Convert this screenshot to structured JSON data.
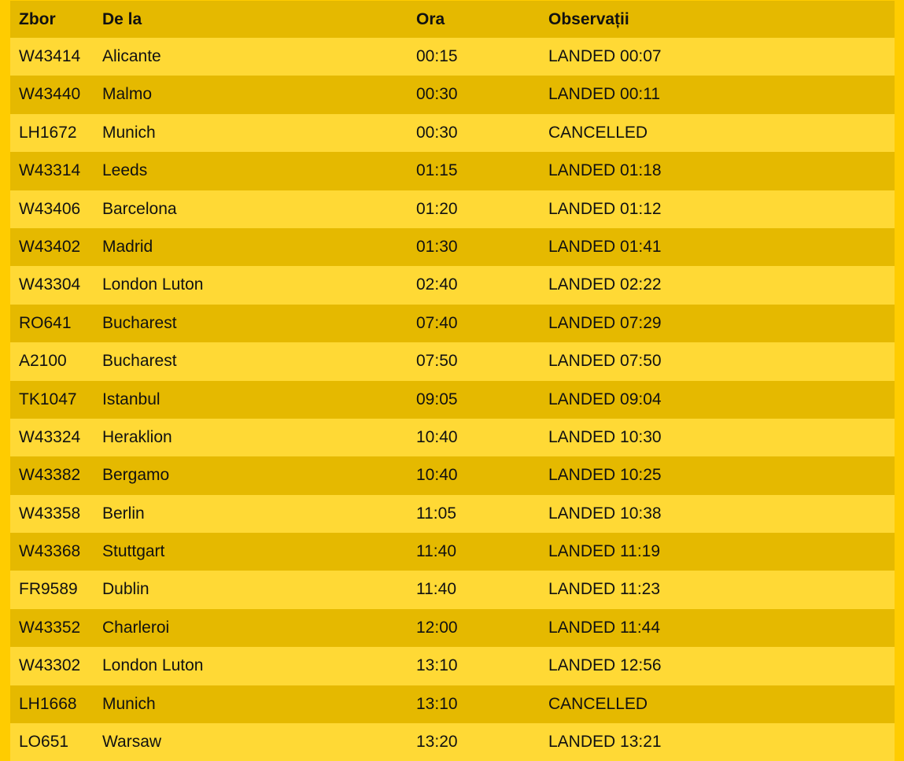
{
  "headers": {
    "flight": "Zbor",
    "from": "De la",
    "time": "Ora",
    "remarks": "Observații"
  },
  "rows": [
    {
      "flight": "W43414",
      "from": "Alicante",
      "time": "00:15",
      "remarks": "LANDED 00:07"
    },
    {
      "flight": "W43440",
      "from": "Malmo",
      "time": "00:30",
      "remarks": "LANDED 00:11"
    },
    {
      "flight": "LH1672",
      "from": "Munich",
      "time": "00:30",
      "remarks": "CANCELLED"
    },
    {
      "flight": "W43314",
      "from": "Leeds",
      "time": "01:15",
      "remarks": "LANDED 01:18"
    },
    {
      "flight": "W43406",
      "from": "Barcelona",
      "time": "01:20",
      "remarks": "LANDED 01:12"
    },
    {
      "flight": "W43402",
      "from": "Madrid",
      "time": "01:30",
      "remarks": "LANDED 01:41"
    },
    {
      "flight": "W43304",
      "from": "London Luton",
      "time": "02:40",
      "remarks": "LANDED 02:22"
    },
    {
      "flight": "RO641",
      "from": "Bucharest",
      "time": "07:40",
      "remarks": "LANDED 07:29"
    },
    {
      "flight": "A2100",
      "from": "Bucharest",
      "time": "07:50",
      "remarks": "LANDED 07:50"
    },
    {
      "flight": "TK1047",
      "from": "Istanbul",
      "time": "09:05",
      "remarks": "LANDED 09:04"
    },
    {
      "flight": "W43324",
      "from": "Heraklion",
      "time": "10:40",
      "remarks": "LANDED 10:30"
    },
    {
      "flight": "W43382",
      "from": "Bergamo",
      "time": "10:40",
      "remarks": "LANDED 10:25"
    },
    {
      "flight": "W43358",
      "from": "Berlin",
      "time": "11:05",
      "remarks": "LANDED 10:38"
    },
    {
      "flight": "W43368",
      "from": "Stuttgart",
      "time": "11:40",
      "remarks": "LANDED 11:19"
    },
    {
      "flight": "FR9589",
      "from": "Dublin",
      "time": "11:40",
      "remarks": "LANDED 11:23"
    },
    {
      "flight": "W43352",
      "from": "Charleroi",
      "time": "12:00",
      "remarks": "LANDED 11:44"
    },
    {
      "flight": "W43302",
      "from": "London Luton",
      "time": "13:10",
      "remarks": "LANDED 12:56"
    },
    {
      "flight": "LH1668",
      "from": "Munich",
      "time": "13:10",
      "remarks": "CANCELLED"
    },
    {
      "flight": "LO651",
      "from": "Warsaw",
      "time": "13:20",
      "remarks": "LANDED 13:21"
    }
  ]
}
